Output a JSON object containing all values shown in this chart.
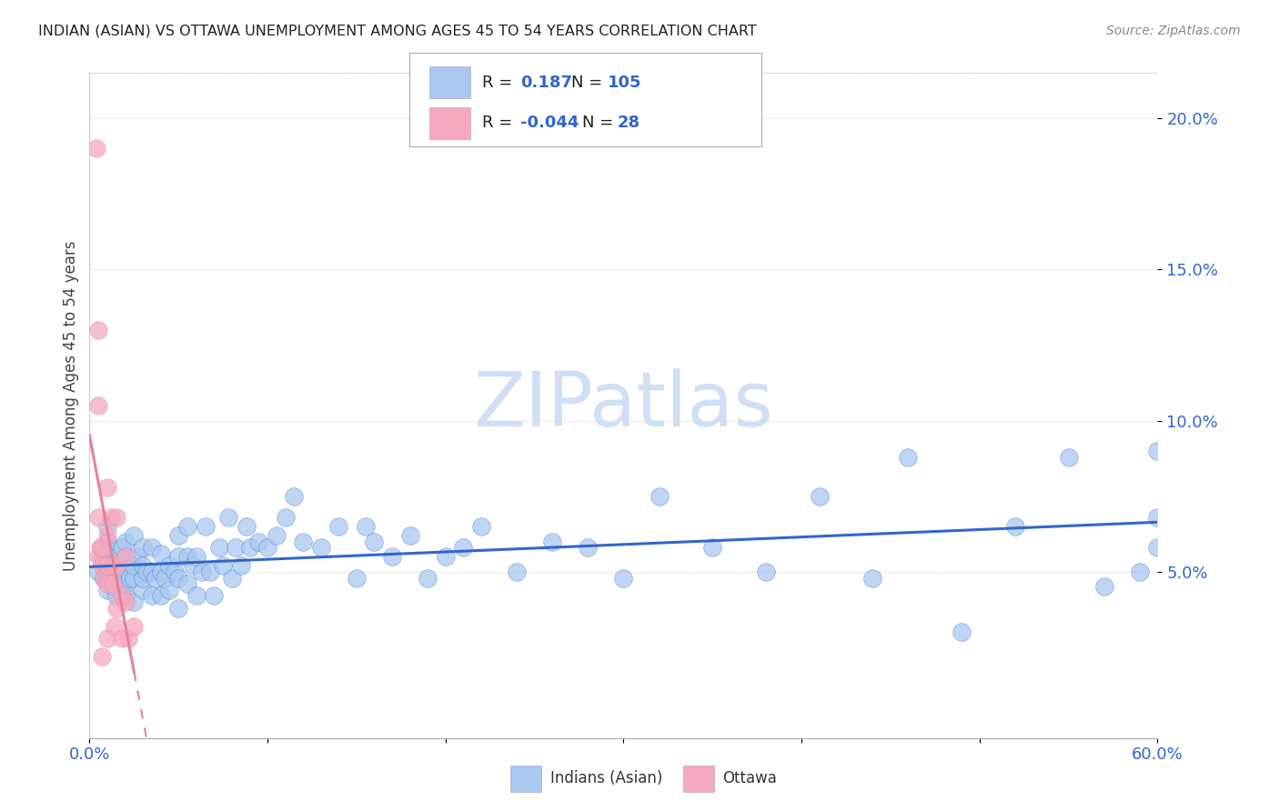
{
  "title": "INDIAN (ASIAN) VS OTTAWA UNEMPLOYMENT AMONG AGES 45 TO 54 YEARS CORRELATION CHART",
  "source": "Source: ZipAtlas.com",
  "ylabel": "Unemployment Among Ages 45 to 54 years",
  "xlim": [
    0.0,
    0.6
  ],
  "ylim": [
    -0.005,
    0.215
  ],
  "yticks": [
    0.05,
    0.1,
    0.15,
    0.2
  ],
  "ytick_labels": [
    "5.0%",
    "10.0%",
    "15.0%",
    "20.0%"
  ],
  "blue_R": 0.187,
  "blue_N": 105,
  "pink_R": -0.044,
  "pink_N": 28,
  "blue_color": "#a8c8f0",
  "pink_color": "#f4a8be",
  "blue_line_color": "#3366cc",
  "pink_line_color": "#e8809a",
  "dark_text": "#222222",
  "axis_label_color": "#3366cc",
  "watermark_color": "#d0dff5",
  "background_color": "#ffffff",
  "blue_x": [
    0.005,
    0.007,
    0.008,
    0.009,
    0.01,
    0.01,
    0.01,
    0.01,
    0.01,
    0.01,
    0.01,
    0.01,
    0.012,
    0.013,
    0.015,
    0.015,
    0.015,
    0.016,
    0.018,
    0.018,
    0.02,
    0.02,
    0.02,
    0.02,
    0.02,
    0.022,
    0.023,
    0.025,
    0.025,
    0.025,
    0.025,
    0.027,
    0.03,
    0.03,
    0.03,
    0.03,
    0.032,
    0.035,
    0.035,
    0.035,
    0.037,
    0.04,
    0.04,
    0.04,
    0.042,
    0.045,
    0.045,
    0.048,
    0.05,
    0.05,
    0.05,
    0.05,
    0.055,
    0.055,
    0.055,
    0.058,
    0.06,
    0.06,
    0.063,
    0.065,
    0.068,
    0.07,
    0.073,
    0.075,
    0.078,
    0.08,
    0.082,
    0.085,
    0.088,
    0.09,
    0.095,
    0.1,
    0.105,
    0.11,
    0.115,
    0.12,
    0.13,
    0.14,
    0.15,
    0.155,
    0.16,
    0.17,
    0.18,
    0.19,
    0.2,
    0.21,
    0.22,
    0.24,
    0.26,
    0.28,
    0.3,
    0.32,
    0.35,
    0.38,
    0.41,
    0.44,
    0.46,
    0.49,
    0.52,
    0.55,
    0.57,
    0.59,
    0.6,
    0.6,
    0.6
  ],
  "blue_y": [
    0.05,
    0.055,
    0.048,
    0.052,
    0.044,
    0.048,
    0.05,
    0.052,
    0.055,
    0.058,
    0.06,
    0.065,
    0.05,
    0.045,
    0.042,
    0.048,
    0.052,
    0.055,
    0.048,
    0.058,
    0.042,
    0.046,
    0.05,
    0.055,
    0.06,
    0.05,
    0.048,
    0.04,
    0.048,
    0.052,
    0.062,
    0.055,
    0.044,
    0.048,
    0.052,
    0.058,
    0.05,
    0.042,
    0.05,
    0.058,
    0.048,
    0.042,
    0.05,
    0.056,
    0.048,
    0.044,
    0.052,
    0.05,
    0.038,
    0.048,
    0.055,
    0.062,
    0.046,
    0.055,
    0.065,
    0.052,
    0.042,
    0.055,
    0.05,
    0.065,
    0.05,
    0.042,
    0.058,
    0.052,
    0.068,
    0.048,
    0.058,
    0.052,
    0.065,
    0.058,
    0.06,
    0.058,
    0.062,
    0.068,
    0.075,
    0.06,
    0.058,
    0.065,
    0.048,
    0.065,
    0.06,
    0.055,
    0.062,
    0.048,
    0.055,
    0.058,
    0.065,
    0.05,
    0.06,
    0.058,
    0.048,
    0.075,
    0.058,
    0.05,
    0.075,
    0.048,
    0.088,
    0.03,
    0.065,
    0.088,
    0.045,
    0.05,
    0.058,
    0.068,
    0.09
  ],
  "pink_x": [
    0.004,
    0.005,
    0.005,
    0.005,
    0.005,
    0.006,
    0.007,
    0.007,
    0.007,
    0.008,
    0.01,
    0.01,
    0.01,
    0.01,
    0.01,
    0.012,
    0.013,
    0.013,
    0.014,
    0.015,
    0.015,
    0.015,
    0.018,
    0.018,
    0.02,
    0.02,
    0.022,
    0.025
  ],
  "pink_y": [
    0.19,
    0.13,
    0.105,
    0.068,
    0.055,
    0.058,
    0.058,
    0.052,
    0.022,
    0.048,
    0.078,
    0.062,
    0.052,
    0.046,
    0.028,
    0.068,
    0.052,
    0.046,
    0.032,
    0.068,
    0.052,
    0.038,
    0.042,
    0.028,
    0.055,
    0.04,
    0.028,
    0.032
  ]
}
